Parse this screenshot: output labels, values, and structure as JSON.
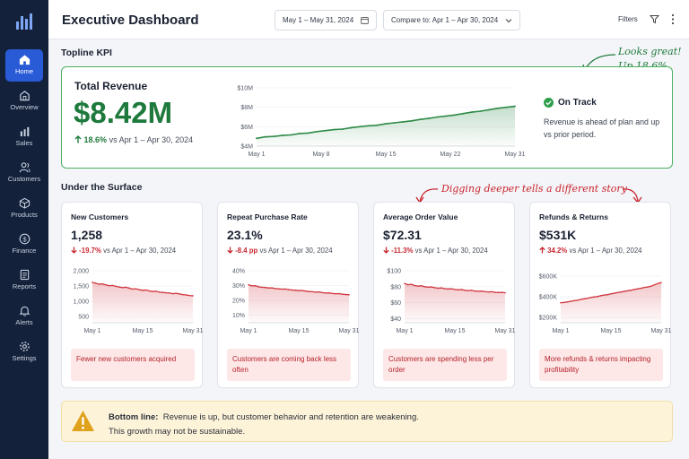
{
  "sidebar": {
    "items": [
      {
        "label": "Home",
        "icon": "home-icon",
        "active": true
      },
      {
        "label": "Overview",
        "icon": "overview-icon"
      },
      {
        "label": "Sales",
        "icon": "sales-icon"
      },
      {
        "label": "Customers",
        "icon": "customers-icon"
      },
      {
        "label": "Products",
        "icon": "products-icon"
      },
      {
        "label": "Finance",
        "icon": "finance-icon"
      },
      {
        "label": "Reports",
        "icon": "reports-icon"
      },
      {
        "label": "Alerts",
        "icon": "alerts-icon"
      },
      {
        "label": "Settings",
        "icon": "settings-icon"
      }
    ]
  },
  "header": {
    "title": "Executive Dashboard",
    "date_range": "May 1 – May 31, 2024",
    "compare": "Compare to: Apr 1 – Apr 30, 2024",
    "filters_label": "Filters"
  },
  "topline": {
    "section_title": "Topline KPI",
    "card_title": "Total Revenue",
    "value": "$8.42M",
    "delta_pct": "18.6%",
    "delta_text": "vs Apr 1 – Apr 30, 2024",
    "status_label": "On Track",
    "status_text": "Revenue is ahead of plan and up vs prior period.",
    "annotation_line1": "Looks great!",
    "annotation_line2": "Up 18.6%"
  },
  "under_surface": {
    "section_title": "Under the Surface",
    "annotation": "Digging deeper tells a different story"
  },
  "cards": [
    {
      "title": "New Customers",
      "value": "1,258",
      "delta_pct": "-19.7%",
      "delta_text": "vs Apr 1 – Apr 30, 2024",
      "note": "Fewer new customers acquired"
    },
    {
      "title": "Repeat Purchase Rate",
      "value": "23.1%",
      "delta_pct": "-8.4 pp",
      "delta_text": "vs Apr 1 – Apr 30, 2024",
      "note": "Customers are coming back less often"
    },
    {
      "title": "Average Order Value",
      "value": "$72.31",
      "delta_pct": "-11.3%",
      "delta_text": "vs Apr 1 – Apr 30, 2024",
      "note": "Customers are spending less per order"
    },
    {
      "title": "Refunds & Returns",
      "value": "$531K",
      "delta_pct": "34.2%",
      "delta_text": "vs Apr 1 – Apr 30, 2024",
      "note": "More refunds & returns impacting profitability"
    }
  ],
  "banner": {
    "label": "Bottom line:",
    "line1": "Revenue is up, but customer behavior and retention are weakening.",
    "line2": "This growth may not be sustainable."
  },
  "colors": {
    "accent": "#2a5bd7",
    "positive": "#1e7a3c",
    "negative": "#c8242e",
    "sidebar": "#13213a"
  },
  "chart_data": [
    {
      "type": "area",
      "x": [
        "May 1",
        "May 2",
        "May 3",
        "May 4",
        "May 5",
        "May 6",
        "May 7",
        "May 8",
        "May 9",
        "May 10",
        "May 11",
        "May 12",
        "May 13",
        "May 14",
        "May 15",
        "May 16",
        "May 17",
        "May 18",
        "May 19",
        "May 20",
        "May 21",
        "May 22",
        "May 23",
        "May 24",
        "May 25",
        "May 26",
        "May 27",
        "May 28",
        "May 29",
        "May 30",
        "May 31"
      ],
      "values": [
        4.8,
        4.95,
        5.0,
        5.1,
        5.15,
        5.3,
        5.35,
        5.5,
        5.6,
        5.7,
        5.75,
        5.9,
        6.0,
        6.1,
        6.15,
        6.3,
        6.4,
        6.5,
        6.6,
        6.75,
        6.85,
        7.0,
        7.1,
        7.2,
        7.35,
        7.5,
        7.6,
        7.75,
        7.9,
        8.0,
        8.1
      ],
      "yticks": [
        "$4M",
        "$6M",
        "$8M",
        "$10M"
      ],
      "ylim": [
        4,
        10
      ],
      "xticks": [
        "May 1",
        "May 8",
        "May 15",
        "May 22",
        "May 31"
      ],
      "color": "#2e8b47"
    },
    {
      "type": "area",
      "values": [
        1620,
        1590,
        1560,
        1570,
        1540,
        1510,
        1520,
        1490,
        1470,
        1450,
        1460,
        1430,
        1400,
        1410,
        1380,
        1360,
        1370,
        1340,
        1320,
        1330,
        1300,
        1290,
        1280,
        1270,
        1250,
        1260,
        1240,
        1220,
        1210,
        1190,
        1180
      ],
      "yticks": [
        "500",
        "1,000",
        "1,500",
        "2,000"
      ],
      "ylim": [
        300,
        2000
      ],
      "xticks": [
        "May 1",
        "May 15",
        "May 31"
      ],
      "color": "#d13a43"
    },
    {
      "type": "area",
      "values": [
        30.5,
        29.8,
        29.9,
        29.2,
        28.9,
        28.7,
        28.4,
        28.5,
        28.0,
        27.8,
        27.6,
        27.7,
        27.3,
        27.0,
        26.9,
        26.6,
        26.7,
        26.3,
        26.0,
        25.9,
        25.6,
        25.7,
        25.3,
        25.0,
        25.1,
        24.7,
        24.5,
        24.6,
        24.2,
        24.0,
        23.8
      ],
      "yticks": [
        "10%",
        "20%",
        "30%",
        "40%"
      ],
      "ylim": [
        5,
        40
      ],
      "xticks": [
        "May 1",
        "May 15",
        "May 31"
      ],
      "color": "#d13a43"
    },
    {
      "type": "area",
      "values": [
        84,
        82.5,
        83,
        81.5,
        80.8,
        81.2,
        80,
        79.5,
        79.8,
        78.8,
        78.2,
        78.6,
        77.6,
        77.2,
        77.5,
        76.6,
        76.2,
        76.5,
        75.6,
        75.2,
        75.5,
        74.6,
        74.3,
        74.6,
        73.8,
        73.5,
        73.8,
        73.0,
        72.8,
        73.0,
        72.4
      ],
      "yticks": [
        "$40",
        "$60",
        "$80",
        "$100"
      ],
      "ylim": [
        35,
        100
      ],
      "xticks": [
        "May 1",
        "May 15",
        "May 31"
      ],
      "color": "#d13a43"
    },
    {
      "type": "area",
      "values": [
        342,
        345,
        350,
        356,
        362,
        366,
        374,
        380,
        385,
        392,
        398,
        402,
        410,
        416,
        420,
        428,
        434,
        440,
        446,
        452,
        458,
        462,
        470,
        476,
        482,
        490,
        494,
        502,
        515,
        528,
        535
      ],
      "yticks": [
        "$200K",
        "$400K",
        "$600K"
      ],
      "ylim": [
        150,
        650
      ],
      "xticks": [
        "May 1",
        "May 15",
        "May 31"
      ],
      "color": "#d13a43"
    }
  ]
}
